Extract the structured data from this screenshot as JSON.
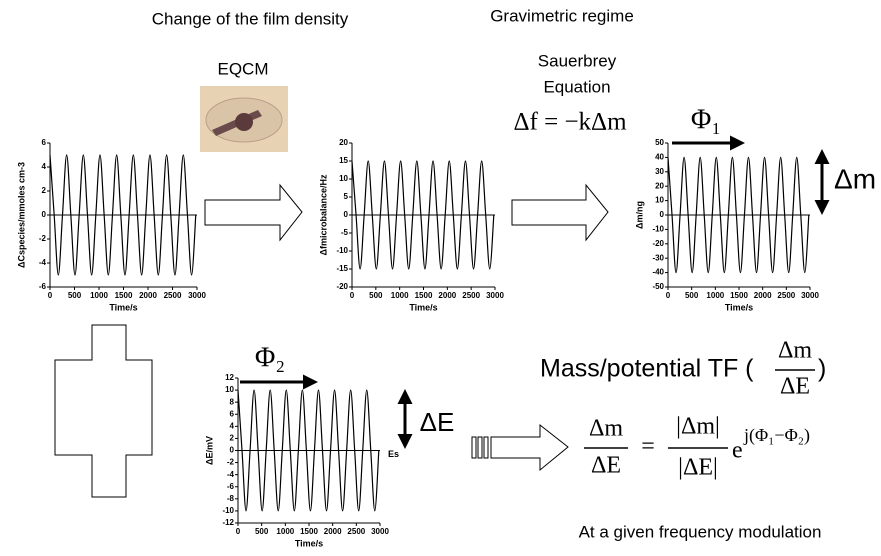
{
  "slide": {
    "title_left": "Change of the film density",
    "title_right": "Gravimetric regime",
    "eqcm": "EQCM",
    "sauerbrey_1": "Sauerbrey",
    "sauerbrey_2": "Equation",
    "sauerbrey_eq": "Δf = −kΔm",
    "phi1": "Φ₁",
    "delta_m": "Δm",
    "phi2": "Φ₂",
    "delta_e": "ΔE",
    "tf_label": "Mass/potential TF (",
    "tf_num": "Δm",
    "tf_den": "ΔE",
    "tf_close": ")",
    "eq_num": "Δm",
    "eq_den": "ΔE",
    "eq_equals": "=",
    "eq_abs_num": "|Δm|",
    "eq_abs_den": "|ΔE|",
    "eq_e": "e",
    "eq_exp": "j(Φ₁−Φ₂)",
    "footer": "At a given frequency modulation"
  },
  "chart_data": [
    {
      "type": "line",
      "x_label": "Time/s",
      "y_label": "ΔCspecies/mmoles cm-3",
      "color": "#000000",
      "x": [
        0,
        85,
        170,
        255,
        340,
        425,
        510,
        595,
        680,
        765,
        850,
        935,
        1020,
        1105,
        1190,
        1275,
        1360,
        1445,
        1530,
        1615,
        1700,
        1785,
        1870,
        1955,
        2040,
        2125,
        2210,
        2295,
        2380,
        2465,
        2550,
        2635,
        2720,
        2805,
        2890,
        2975
      ],
      "values": [
        5,
        0,
        -5,
        0,
        5,
        0,
        -5,
        0,
        5,
        0,
        -5,
        0,
        5,
        0,
        -5,
        0,
        5,
        0,
        -5,
        0,
        5,
        0,
        -5,
        0,
        5,
        0,
        -5,
        0,
        5,
        0,
        -5,
        0,
        5,
        0,
        -5,
        0
      ],
      "xlim": [
        0,
        3000
      ],
      "xticks": [
        0,
        500,
        1000,
        1500,
        2000,
        2500,
        3000
      ],
      "ylim": [
        -6,
        6
      ],
      "yticks": [
        -6,
        -4,
        -2,
        0,
        2,
        4,
        6
      ]
    },
    {
      "type": "line",
      "x_label": "Time/s",
      "y_label": "Δfmicrobalance/Hz",
      "color": "#000000",
      "x": [
        0,
        85,
        170,
        255,
        340,
        425,
        510,
        595,
        680,
        765,
        850,
        935,
        1020,
        1105,
        1190,
        1275,
        1360,
        1445,
        1530,
        1615,
        1700,
        1785,
        1870,
        1955,
        2040,
        2125,
        2210,
        2295,
        2380,
        2465,
        2550,
        2635,
        2720,
        2805,
        2890,
        2975
      ],
      "values": [
        15,
        0,
        -15,
        0,
        15,
        0,
        -15,
        0,
        15,
        0,
        -15,
        0,
        15,
        0,
        -15,
        0,
        15,
        0,
        -15,
        0,
        15,
        0,
        -15,
        0,
        15,
        0,
        -15,
        0,
        15,
        0,
        -15,
        0,
        15,
        0,
        -15,
        0
      ],
      "xlim": [
        0,
        3000
      ],
      "xticks": [
        0,
        500,
        1000,
        1500,
        2000,
        2500,
        3000
      ],
      "ylim": [
        -20,
        20
      ],
      "yticks": [
        -20,
        -15,
        -10,
        -5,
        0,
        5,
        10,
        15,
        20
      ]
    },
    {
      "type": "line",
      "x_label": "Time/s",
      "y_label": "Δm/ng",
      "color": "#000000",
      "x": [
        0,
        85,
        170,
        255,
        340,
        425,
        510,
        595,
        680,
        765,
        850,
        935,
        1020,
        1105,
        1190,
        1275,
        1360,
        1445,
        1530,
        1615,
        1700,
        1785,
        1870,
        1955,
        2040,
        2125,
        2210,
        2295,
        2380,
        2465,
        2550,
        2635,
        2720,
        2805,
        2890,
        2975
      ],
      "values": [
        40,
        0,
        -40,
        0,
        40,
        0,
        -40,
        0,
        40,
        0,
        -40,
        0,
        40,
        0,
        -40,
        0,
        40,
        0,
        -40,
        0,
        40,
        0,
        -40,
        0,
        40,
        0,
        -40,
        0,
        40,
        0,
        -40,
        0,
        40,
        0,
        -40,
        0
      ],
      "xlim": [
        0,
        3000
      ],
      "xticks": [
        0,
        500,
        1000,
        1500,
        2000,
        2500,
        3000
      ],
      "ylim": [
        -50,
        50
      ],
      "yticks": [
        -50,
        -40,
        -30,
        -20,
        -10,
        0,
        10,
        20,
        30,
        40,
        50
      ]
    },
    {
      "type": "line",
      "x_label": "Time/s",
      "y_label": "ΔE/mV",
      "annotation": "Es",
      "color": "#000000",
      "x": [
        0,
        85,
        170,
        255,
        340,
        425,
        510,
        595,
        680,
        765,
        850,
        935,
        1020,
        1105,
        1190,
        1275,
        1360,
        1445,
        1530,
        1615,
        1700,
        1785,
        1870,
        1955,
        2040,
        2125,
        2210,
        2295,
        2380,
        2465,
        2550,
        2635,
        2720,
        2805,
        2890,
        2975
      ],
      "values": [
        10,
        0,
        -10,
        0,
        10,
        0,
        -10,
        0,
        10,
        0,
        -10,
        0,
        10,
        0,
        -10,
        0,
        10,
        0,
        -10,
        0,
        10,
        0,
        -10,
        0,
        10,
        0,
        -10,
        0,
        10,
        0,
        -10,
        0,
        10,
        0,
        -10,
        0
      ],
      "xlim": [
        0,
        3000
      ],
      "xticks": [
        0,
        500,
        1000,
        1500,
        2000,
        2500,
        3000
      ],
      "ylim": [
        -12,
        12
      ],
      "yticks": [
        -12,
        -10,
        -8,
        -6,
        -4,
        -2,
        0,
        2,
        4,
        6,
        8,
        10,
        12
      ]
    }
  ]
}
